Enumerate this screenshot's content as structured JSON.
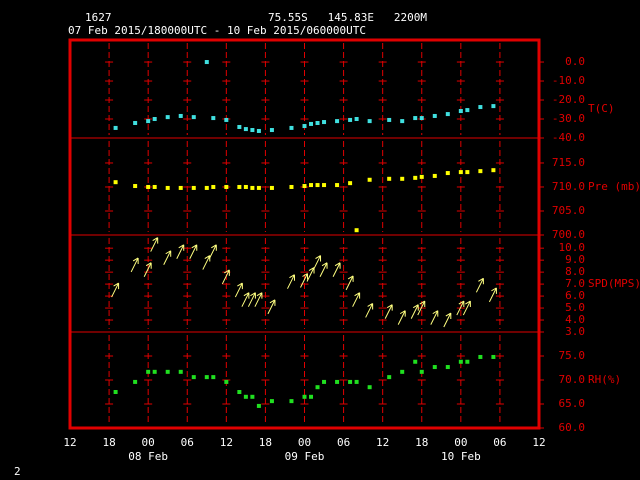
{
  "header": {
    "station": "1627",
    "location": "75.55S   145.83E   2200M",
    "period": "07 Feb 2015/180000UTC - 10 Feb 2015/060000UTC",
    "page": "2"
  },
  "chart_data": [
    {
      "type": "scatter",
      "ylabel": "T(C)",
      "color": "#40e0e0",
      "ylim": [
        -40,
        11.6
      ],
      "yticks": [
        {
          "value": 0,
          "label": "0.0"
        },
        {
          "value": -10,
          "label": "-10.0"
        },
        {
          "value": -20,
          "label": "-20.0"
        },
        {
          "value": -30,
          "label": "-30.0"
        },
        {
          "value": -40,
          "label": "-40.0"
        }
      ],
      "x": [
        7,
        10,
        12,
        13,
        15,
        17,
        19,
        21,
        22,
        24,
        26,
        27,
        28,
        29,
        31,
        34,
        36,
        37,
        38,
        39,
        41,
        43,
        44,
        46,
        49,
        51,
        53,
        54,
        56,
        58,
        60,
        61,
        63,
        65
      ],
      "values": [
        -34.7,
        -32.1,
        -31.1,
        -30,
        -29,
        -28.4,
        -29,
        0,
        -29.5,
        -30.5,
        -34.2,
        -35.3,
        -35.8,
        -36.3,
        -35.8,
        -34.7,
        -33.7,
        -32.6,
        -32.1,
        -31.6,
        -31.1,
        -30.5,
        -30,
        -31.1,
        -30.5,
        -31.1,
        -29.5,
        -29.5,
        -28.4,
        -27.4,
        -25.8,
        -25.3,
        -23.7,
        -23.2
      ]
    },
    {
      "type": "scatter",
      "ylabel": "Pre (mb)",
      "color": "#ffff00",
      "ylim": [
        700,
        720.2
      ],
      "yticks": [
        {
          "value": 715,
          "label": "715.0"
        },
        {
          "value": 710,
          "label": "710.0"
        },
        {
          "value": 705,
          "label": "705.0"
        },
        {
          "value": 700,
          "label": "700.0"
        }
      ],
      "x": [
        7,
        10,
        12,
        13,
        15,
        17,
        19,
        21,
        22,
        24,
        26,
        27,
        28,
        29,
        31,
        34,
        36,
        37,
        38,
        39,
        41,
        43,
        44,
        46,
        49,
        51,
        53,
        54,
        56,
        58,
        60,
        61,
        63,
        65
      ],
      "values": [
        711,
        710.2,
        710,
        710,
        709.8,
        709.8,
        709.8,
        709.8,
        710,
        710,
        710,
        710,
        709.8,
        709.8,
        709.8,
        710,
        710.2,
        710.4,
        710.4,
        710.4,
        710.4,
        710.8,
        701,
        711.5,
        711.7,
        711.7,
        711.9,
        712.1,
        712.3,
        712.9,
        713.1,
        713.1,
        713.3,
        713.5
      ]
    },
    {
      "type": "quiver",
      "ylabel": "SPD(MPS)",
      "color": "#ffff80",
      "ylim": [
        3,
        11.1
      ],
      "yticks": [
        {
          "value": 10,
          "label": "10.0"
        },
        {
          "value": 9,
          "label": "9.0"
        },
        {
          "value": 8,
          "label": "8.0"
        },
        {
          "value": 7,
          "label": "7.0"
        },
        {
          "value": 6,
          "label": "6.0"
        },
        {
          "value": 5,
          "label": "5.0"
        },
        {
          "value": 4,
          "label": "4.0"
        },
        {
          "value": 3,
          "label": "3.0"
        }
      ],
      "x": [
        7,
        10,
        12,
        13,
        15,
        17,
        19,
        21,
        22,
        24,
        26,
        27,
        28,
        29,
        31,
        34,
        36,
        37,
        38,
        39,
        41,
        43,
        44,
        46,
        49,
        51,
        53,
        54,
        56,
        58,
        60,
        61,
        63,
        65
      ],
      "values": [
        6.5,
        8.6,
        8.2,
        10.3,
        9.2,
        9.7,
        9.7,
        8.8,
        9.7,
        7.6,
        6.5,
        5.7,
        5.7,
        5.7,
        5.1,
        7.2,
        7.3,
        7.8,
        8.8,
        8.2,
        8.2,
        7.1,
        5.7,
        4.8,
        4.7,
        4.2,
        4.7,
        5,
        4.2,
        4,
        5,
        5,
        6.9,
        6.1
      ]
    },
    {
      "type": "scatter",
      "ylabel": "RH(%)",
      "color": "#20e020",
      "ylim": [
        60,
        80
      ],
      "yticks": [
        {
          "value": 75,
          "label": "75.0"
        },
        {
          "value": 70,
          "label": "70.0"
        },
        {
          "value": 65,
          "label": "65.0"
        },
        {
          "value": 60,
          "label": "60.0"
        }
      ],
      "x": [
        7,
        10,
        12,
        13,
        15,
        17,
        19,
        21,
        22,
        24,
        26,
        27,
        28,
        29,
        31,
        34,
        36,
        37,
        38,
        39,
        41,
        43,
        44,
        46,
        49,
        51,
        53,
        54,
        56,
        58,
        60,
        61,
        63,
        65
      ],
      "values": [
        67.5,
        69.6,
        71.7,
        71.7,
        71.7,
        71.7,
        70.6,
        70.6,
        70.6,
        69.6,
        67.5,
        66.5,
        66.5,
        64.6,
        65.6,
        65.6,
        66.5,
        66.5,
        68.5,
        69.6,
        69.6,
        69.6,
        69.6,
        68.5,
        70.6,
        71.7,
        73.8,
        71.7,
        72.7,
        72.7,
        73.8,
        73.8,
        74.8,
        74.8
      ],
      "xlim": [
        0,
        72
      ],
      "xticks": [
        {
          "value": 0,
          "label": "12"
        },
        {
          "value": 6,
          "label": "18"
        },
        {
          "value": 12,
          "label": "00"
        },
        {
          "value": 18,
          "label": "06"
        },
        {
          "value": 24,
          "label": "12"
        },
        {
          "value": 30,
          "label": "18"
        },
        {
          "value": 36,
          "label": "00"
        },
        {
          "value": 42,
          "label": "06"
        },
        {
          "value": 48,
          "label": "12"
        },
        {
          "value": 54,
          "label": "18"
        },
        {
          "value": 60,
          "label": "00"
        },
        {
          "value": 66,
          "label": "06"
        },
        {
          "value": 72,
          "label": "12"
        }
      ],
      "date_labels": [
        {
          "value": 12,
          "label": "08 Feb"
        },
        {
          "value": 36,
          "label": "09 Feb"
        },
        {
          "value": 60,
          "label": "10 Feb"
        }
      ]
    }
  ]
}
